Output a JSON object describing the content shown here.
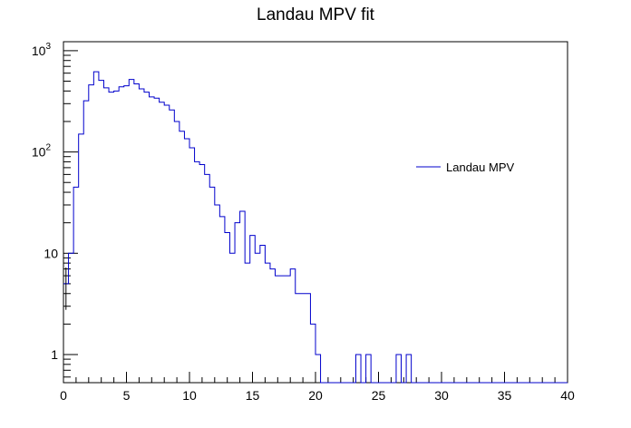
{
  "chart_data": {
    "type": "histogram",
    "title": "Landau MPV fit",
    "xlabel": "",
    "ylabel": "",
    "xlim": [
      0,
      40
    ],
    "ylim": [
      0.5,
      1200
    ],
    "y_scale": "log",
    "grid": false,
    "legend": {
      "position": "right-middle",
      "entries": [
        "Landau MPV"
      ]
    },
    "series": [
      {
        "name": "Landau MPV",
        "color": "#0000cc",
        "bin_width": 0.4,
        "x_start": 0,
        "values": [
          5,
          10,
          45,
          150,
          320,
          460,
          620,
          510,
          430,
          390,
          400,
          440,
          450,
          520,
          470,
          420,
          390,
          350,
          340,
          310,
          290,
          260,
          200,
          160,
          135,
          110,
          80,
          75,
          60,
          45,
          30,
          23,
          16,
          10,
          20,
          26,
          8,
          15,
          10,
          12,
          8,
          7,
          6,
          6,
          6,
          7,
          4,
          4,
          4,
          2,
          1,
          0,
          0,
          0,
          0,
          0,
          0,
          0,
          1,
          0,
          1,
          0,
          0,
          0,
          0,
          0,
          1,
          0,
          1,
          0,
          0,
          0,
          0,
          0,
          0,
          0,
          0,
          0,
          0,
          0,
          0,
          0,
          0,
          0,
          0,
          0,
          0,
          0,
          0,
          0,
          0,
          0,
          0,
          0,
          0,
          0,
          0,
          0,
          0,
          0
        ]
      }
    ],
    "x_ticks": [
      "0",
      "5",
      "10",
      "15",
      "20",
      "25",
      "30",
      "35",
      "40"
    ],
    "y_ticks": [
      {
        "label_base": "1",
        "label_exp": ""
      },
      {
        "label_base": "10",
        "label_exp": ""
      },
      {
        "label_base": "10",
        "label_exp": "2"
      },
      {
        "label_base": "10",
        "label_exp": "3"
      }
    ]
  }
}
